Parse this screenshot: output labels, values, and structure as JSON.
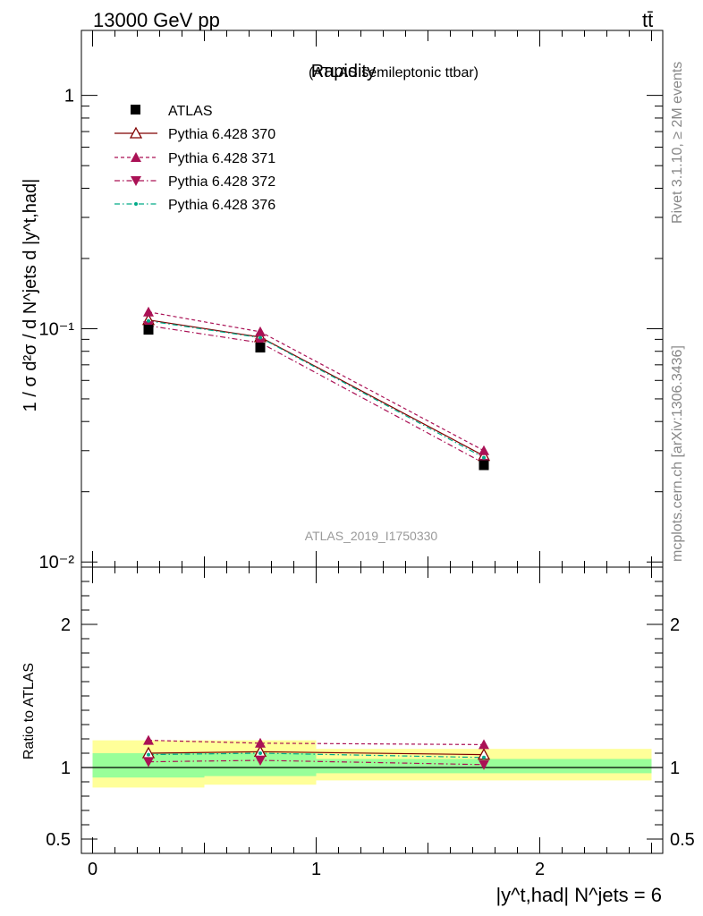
{
  "header": {
    "energy": "13000 GeV pp",
    "process": "tt̄"
  },
  "side_labels": {
    "rivet": "Rivet 3.1.10, ≥ 2M events",
    "mcplots": "mcplots.cern.ch [arXiv:1306.3436]"
  },
  "colors": {
    "data": "#000000",
    "p370": "#800000",
    "p371": "#aa1155",
    "p372": "#aa1155",
    "p376": "#00aa88",
    "band_inner": "#99ff99",
    "band_outer": "#ffff99"
  },
  "chart_data": [
    {
      "type": "line",
      "title": "Rapidity",
      "subtitle": "(ATLAS semileptonic ttbar)",
      "analysis_label": "ATLAS_2019_I1750330",
      "ylabel": "1 / σ d²σ / d N^jets d |y^t,had|",
      "yscale": "log",
      "ylim": [
        0.0095,
        1.9
      ],
      "xlim": [
        -0.05,
        2.55
      ],
      "x": [
        0.25,
        0.75,
        1.75
      ],
      "y_ticks": [
        "10⁻²",
        "10⁻¹",
        "1"
      ],
      "legend_position": "top-left",
      "series": [
        {
          "name": "ATLAS",
          "values": [
            0.099,
            0.083,
            0.026
          ]
        },
        {
          "name": "Pythia 6.428 370",
          "values": [
            0.109,
            0.092,
            0.0285
          ]
        },
        {
          "name": "Pythia 6.428 371",
          "values": [
            0.118,
            0.097,
            0.03
          ]
        },
        {
          "name": "Pythia 6.428 372",
          "values": [
            0.103,
            0.087,
            0.0265
          ]
        },
        {
          "name": "Pythia 6.428 376",
          "values": [
            0.108,
            0.0915,
            0.028
          ]
        }
      ]
    },
    {
      "type": "line",
      "ylabel": "Ratio to ATLAS",
      "xlabel": "|y^t,had| N^jets = 6",
      "ylim": [
        0.4,
        2.4
      ],
      "xlim": [
        -0.05,
        2.55
      ],
      "x_ticks": [
        "0",
        "1",
        "2"
      ],
      "y_ticks": [
        "0.5",
        "1",
        "2"
      ],
      "x": [
        0.25,
        0.75,
        1.75
      ],
      "bands": [
        {
          "x0": 0.0,
          "x1": 0.5,
          "inner": [
            0.93,
            1.1
          ],
          "outer": [
            0.86,
            1.19
          ]
        },
        {
          "x0": 0.5,
          "x1": 1.0,
          "inner": [
            0.94,
            1.1
          ],
          "outer": [
            0.88,
            1.19
          ]
        },
        {
          "x0": 1.0,
          "x1": 2.5,
          "inner": [
            0.96,
            1.06
          ],
          "outer": [
            0.91,
            1.13
          ]
        }
      ],
      "series": [
        {
          "name": "Pythia 6.428 370",
          "values": [
            1.1,
            1.11,
            1.09
          ]
        },
        {
          "name": "Pythia 6.428 371",
          "values": [
            1.19,
            1.17,
            1.16
          ]
        },
        {
          "name": "Pythia 6.428 372",
          "values": [
            1.04,
            1.05,
            1.02
          ]
        },
        {
          "name": "Pythia 6.428 376",
          "values": [
            1.09,
            1.1,
            1.07
          ]
        }
      ]
    }
  ]
}
